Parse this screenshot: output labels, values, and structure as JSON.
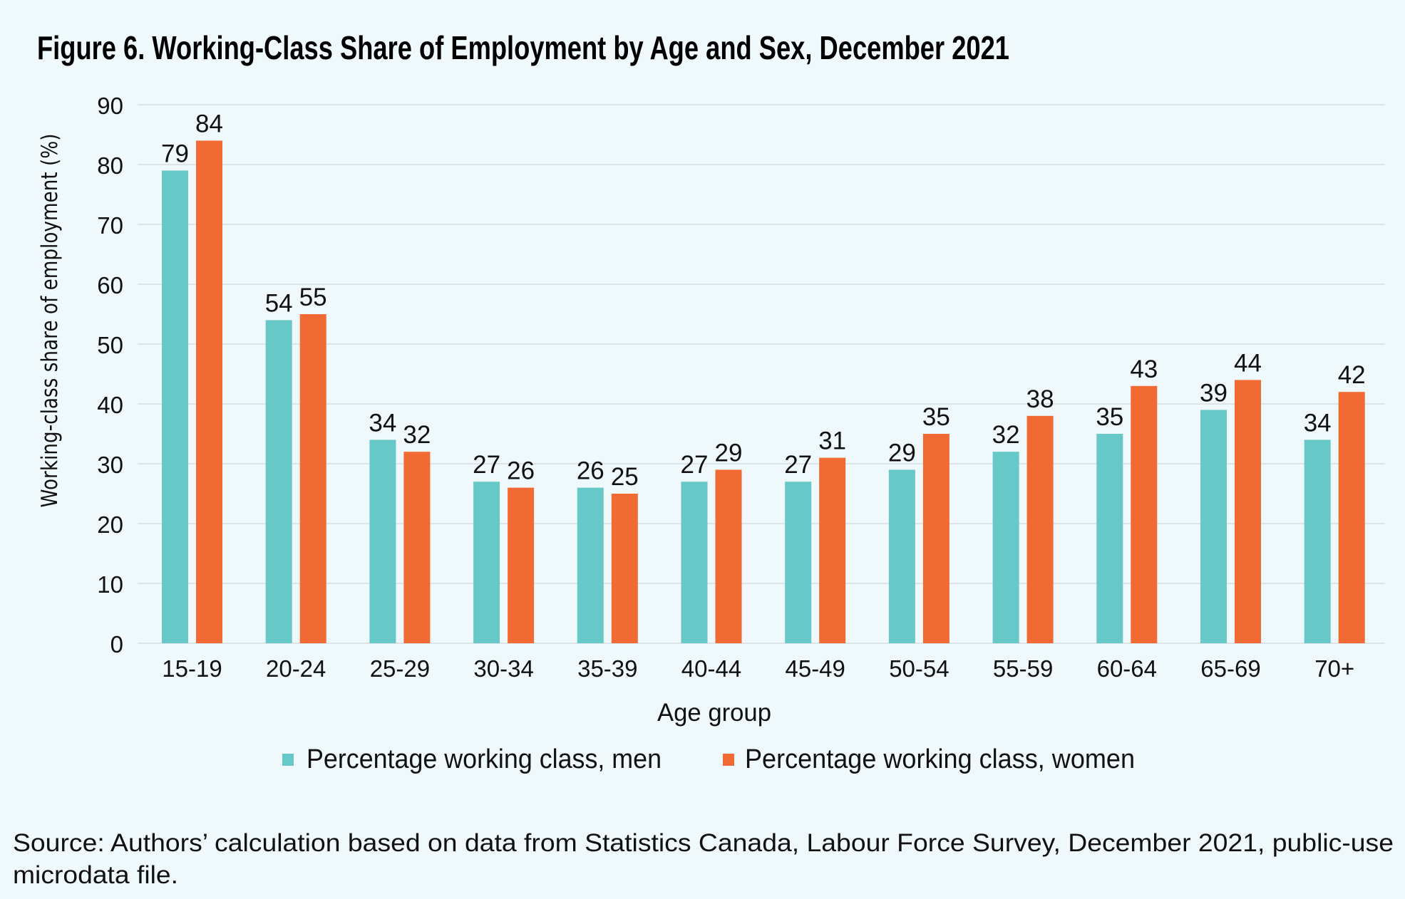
{
  "chart_data": {
    "type": "bar",
    "title": "Figure 6. Working-Class Share of Employment by Age and Sex, December 2021",
    "xlabel": "Age group",
    "ylabel": "Working-class share of employment  (%)",
    "ylim": [
      0,
      90
    ],
    "yticks": [
      0,
      10,
      20,
      30,
      40,
      50,
      60,
      70,
      80,
      90
    ],
    "grid": true,
    "legend_position": "bottom",
    "categories": [
      "15-19",
      "20-24",
      "25-29",
      "30-34",
      "35-39",
      "40-44",
      "45-49",
      "50-54",
      "55-59",
      "60-64",
      "65-69",
      "70+"
    ],
    "series": [
      {
        "name": "Percentage working class, men",
        "color": "#67C8C8",
        "values": [
          79,
          54,
          34,
          27,
          26,
          27,
          27,
          29,
          32,
          35,
          39,
          34
        ]
      },
      {
        "name": "Percentage working class, women",
        "color": "#F26A33",
        "values": [
          84,
          55,
          32,
          26,
          25,
          29,
          31,
          35,
          38,
          43,
          44,
          42
        ]
      }
    ],
    "source": [
      "Source: Authors’ calculation based on data from Statistics Canada, Labour Force Survey, December 2021, public-use",
      "microdata file."
    ]
  }
}
